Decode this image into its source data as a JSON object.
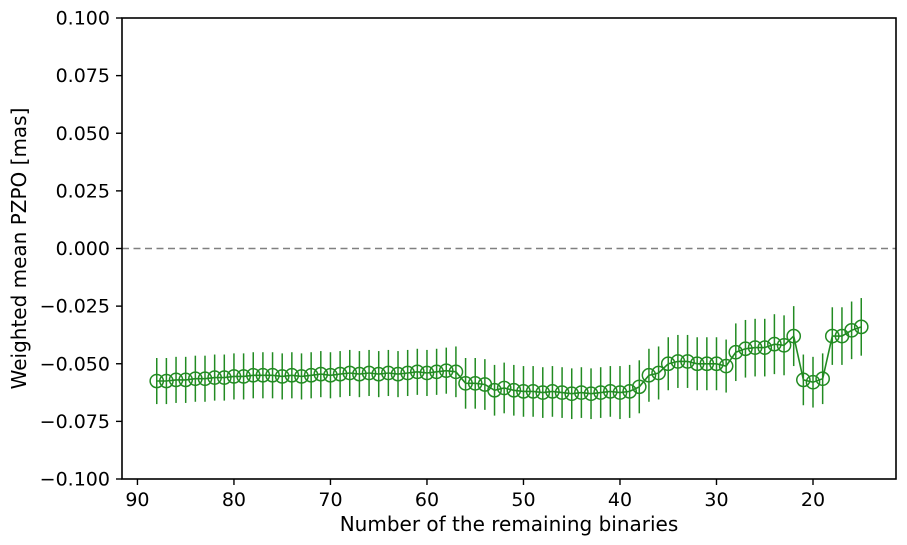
{
  "chart_data": {
    "type": "line",
    "title": "",
    "xlabel": "Number of the remaining binaries",
    "ylabel": "Weighted mean PZPO [mas]",
    "marker": "open-circle",
    "series_color": "#228B22",
    "zero_line": {
      "y": 0.0,
      "style": "dashed",
      "color": "#808080"
    },
    "grid": false,
    "legend": null,
    "x_axis_inverted": true,
    "xlim": [
      91.6,
      11.4
    ],
    "ylim": [
      -0.1,
      0.1
    ],
    "x_ticks": [
      90,
      80,
      70,
      60,
      50,
      40,
      30,
      20
    ],
    "x_tick_labels": [
      "90",
      "80",
      "70",
      "60",
      "50",
      "40",
      "30",
      "20"
    ],
    "y_ticks": [
      0.1,
      0.075,
      0.05,
      0.025,
      0.0,
      -0.025,
      -0.05,
      -0.075,
      -0.1
    ],
    "y_tick_labels": [
      "0.100",
      "0.075",
      "0.050",
      "0.025",
      "0.000",
      "−0.025",
      "−0.050",
      "−0.075",
      "−0.100"
    ],
    "x": [
      88,
      87,
      86,
      85,
      84,
      83,
      82,
      81,
      80,
      79,
      78,
      77,
      76,
      75,
      74,
      73,
      72,
      71,
      70,
      69,
      68,
      67,
      66,
      65,
      64,
      63,
      62,
      61,
      60,
      59,
      58,
      57,
      56,
      55,
      54,
      53,
      52,
      51,
      50,
      49,
      48,
      47,
      46,
      45,
      44,
      43,
      42,
      41,
      40,
      39,
      38,
      37,
      36,
      35,
      34,
      33,
      32,
      31,
      30,
      29,
      28,
      27,
      26,
      25,
      24,
      23,
      22,
      21,
      20,
      19,
      18,
      17,
      16,
      15
    ],
    "y": [
      -0.0575,
      -0.0575,
      -0.057,
      -0.057,
      -0.0565,
      -0.0565,
      -0.056,
      -0.056,
      -0.0555,
      -0.0555,
      -0.055,
      -0.055,
      -0.055,
      -0.0555,
      -0.055,
      -0.0555,
      -0.055,
      -0.0545,
      -0.055,
      -0.0545,
      -0.054,
      -0.0545,
      -0.054,
      -0.0545,
      -0.054,
      -0.0545,
      -0.054,
      -0.0535,
      -0.054,
      -0.0535,
      -0.053,
      -0.0535,
      -0.0585,
      -0.0585,
      -0.059,
      -0.0615,
      -0.0605,
      -0.0615,
      -0.062,
      -0.062,
      -0.0625,
      -0.062,
      -0.0625,
      -0.063,
      -0.0625,
      -0.063,
      -0.0625,
      -0.062,
      -0.0625,
      -0.062,
      -0.06,
      -0.055,
      -0.054,
      -0.05,
      -0.049,
      -0.049,
      -0.05,
      -0.05,
      -0.05,
      -0.051,
      -0.045,
      -0.0435,
      -0.043,
      -0.043,
      -0.0415,
      -0.042,
      -0.038,
      -0.057,
      -0.058,
      -0.0565,
      -0.038,
      -0.038,
      -0.0355,
      -0.034
    ],
    "yerr": [
      0.01,
      0.01,
      0.01,
      0.01,
      0.01,
      0.01,
      0.01,
      0.01,
      0.01,
      0.01,
      0.01,
      0.01,
      0.01,
      0.01,
      0.01,
      0.01,
      0.01,
      0.01,
      0.01,
      0.01,
      0.01,
      0.01,
      0.01,
      0.01,
      0.01,
      0.01,
      0.01,
      0.01,
      0.01,
      0.01,
      0.01,
      0.011,
      0.011,
      0.011,
      0.011,
      0.011,
      0.011,
      0.011,
      0.011,
      0.011,
      0.011,
      0.011,
      0.011,
      0.011,
      0.011,
      0.011,
      0.011,
      0.011,
      0.0115,
      0.0115,
      0.0115,
      0.0115,
      0.0115,
      0.0115,
      0.0115,
      0.0115,
      0.0115,
      0.0115,
      0.0115,
      0.0115,
      0.0125,
      0.0125,
      0.0125,
      0.0125,
      0.013,
      0.013,
      0.013,
      0.011,
      0.011,
      0.011,
      0.0125,
      0.0125,
      0.0125,
      0.0125
    ]
  }
}
